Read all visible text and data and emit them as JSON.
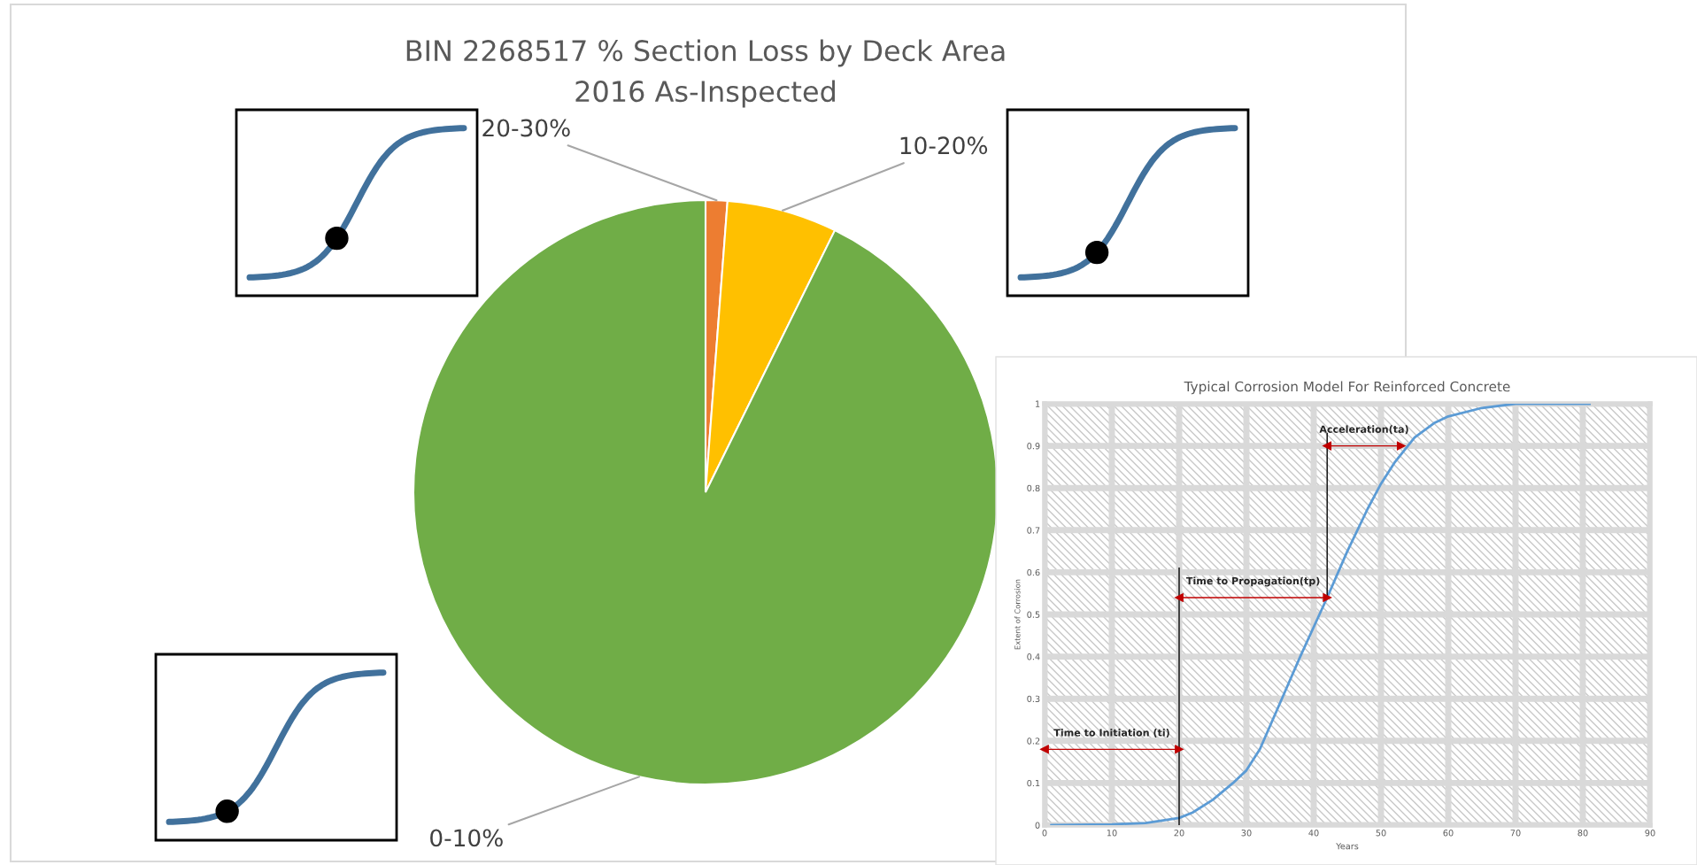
{
  "chart_data": [
    {
      "type": "pie",
      "title": "BIN 2268517 % Section Loss by Deck Area",
      "subtitle": "2016 As-Inspected",
      "categories": [
        "20-30%",
        "10-20%",
        "0-10%"
      ],
      "values": [
        1.2,
        6.1,
        92.7
      ],
      "colors": [
        "#ed7d31",
        "#ffc000",
        "#70ad47"
      ]
    },
    {
      "type": "line",
      "title": "Typical Corrosion Model For Reinforced Concrete",
      "xlabel": "Years",
      "ylabel": "Extent of Corrosion",
      "xlim": [
        0,
        90
      ],
      "ylim": [
        0,
        1
      ],
      "xticks": [
        0,
        10,
        20,
        30,
        40,
        50,
        60,
        70,
        80,
        90
      ],
      "yticks": [
        0,
        0.1,
        0.2,
        0.3,
        0.4,
        0.5,
        0.6,
        0.7,
        0.8,
        0.9,
        1
      ],
      "grid": true,
      "series": [
        {
          "color": "#5b9bd5",
          "x": [
            1,
            10,
            15,
            20,
            22,
            25,
            28,
            30,
            32,
            35,
            38,
            40,
            42,
            45,
            48,
            50,
            52,
            55,
            58,
            60,
            65,
            70,
            75,
            81
          ],
          "values": [
            0,
            0.002,
            0.005,
            0.017,
            0.03,
            0.06,
            0.1,
            0.13,
            0.18,
            0.29,
            0.4,
            0.47,
            0.54,
            0.65,
            0.75,
            0.81,
            0.86,
            0.92,
            0.955,
            0.97,
            0.99,
            1,
            1,
            1
          ]
        },
        {
          "color": "#000000",
          "x": [
            20,
            20
          ],
          "values": [
            0,
            0.61
          ]
        },
        {
          "color": "#000000",
          "x": [
            42,
            42
          ],
          "values": [
            0.54,
            0.93
          ]
        },
        {
          "color": "#c00000",
          "marker": "triangle",
          "x": [
            0,
            20
          ],
          "values": [
            0.18,
            0.18
          ]
        },
        {
          "color": "#c00000",
          "marker": "triangle",
          "x": [
            20,
            42
          ],
          "values": [
            0.54,
            0.54
          ]
        },
        {
          "color": "#c00000",
          "marker": "triangle",
          "x": [
            42,
            53
          ],
          "values": [
            0.9,
            0.9
          ]
        }
      ],
      "annotations": [
        "Time to Initiation (ti)",
        "Time to Propagation(tp)",
        "Acceleration(ta)"
      ]
    }
  ]
}
